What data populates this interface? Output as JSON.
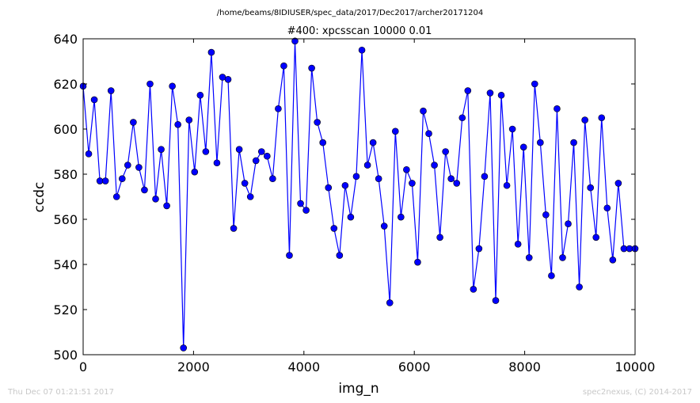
{
  "chart_data": {
    "type": "line",
    "suptitle": "/home/beams/8IDIUSER/spec_data/2017/Dec2017/archer20171204",
    "title": "#400: xpcsscan 10000 0.01",
    "xlabel": "img_n",
    "ylabel": "ccdc",
    "xlim": [
      0,
      10000
    ],
    "ylim": [
      500,
      640
    ],
    "xticks": [
      "0",
      "2000",
      "4000",
      "6000",
      "8000",
      "10000"
    ],
    "yticks": [
      "500",
      "520",
      "540",
      "560",
      "580",
      "600",
      "620",
      "640"
    ],
    "xtick_values": [
      0,
      2000,
      4000,
      6000,
      8000,
      10000
    ],
    "ytick_values": [
      500,
      520,
      540,
      560,
      580,
      600,
      620,
      640
    ],
    "grid": false,
    "line_color": "#0000ff",
    "marker_color": "#0000ff",
    "marker": "circle",
    "series": [
      {
        "x": [
          0,
          101,
          202,
          303,
          404,
          505,
          606,
          707,
          808,
          909,
          1010,
          1111,
          1212,
          1313,
          1414,
          1515,
          1616,
          1717,
          1818,
          1919,
          2020,
          2121,
          2222,
          2323,
          2424,
          2525,
          2626,
          2727,
          2828,
          2929,
          3030,
          3131,
          3232,
          3333,
          3434,
          3535,
          3636,
          3737,
          3838,
          3939,
          4040,
          4141,
          4242,
          4343,
          4444,
          4545,
          4646,
          4747,
          4848,
          4949,
          5051,
          5152,
          5253,
          5354,
          5455,
          5556,
          5657,
          5758,
          5859,
          5960,
          6061,
          6162,
          6263,
          6364,
          6465,
          6566,
          6667,
          6768,
          6869,
          6970,
          7071,
          7172,
          7273,
          7374,
          7475,
          7576,
          7677,
          7778,
          7879,
          7980,
          8081,
          8182,
          8283,
          8384,
          8485,
          8586,
          8687,
          8788,
          8889,
          8990,
          9091,
          9192,
          9293,
          9394,
          9495,
          9596,
          9697,
          9798,
          9899,
          10000
        ],
        "y": [
          619,
          589,
          613,
          577,
          577,
          617,
          570,
          578,
          584,
          603,
          583,
          573,
          620,
          569,
          591,
          566,
          619,
          602,
          503,
          604,
          581,
          615,
          590,
          634,
          585,
          623,
          622,
          556,
          591,
          576,
          570,
          586,
          590,
          588,
          578,
          609,
          628,
          544,
          639,
          567,
          564,
          627,
          603,
          594,
          574,
          556,
          544,
          575,
          561,
          579,
          635,
          584,
          594,
          578,
          557,
          523,
          599,
          561,
          582,
          576,
          541,
          608,
          598,
          584,
          552,
          590,
          578,
          576,
          605,
          617,
          529,
          547,
          579,
          616,
          524,
          615,
          575,
          600,
          549,
          592,
          543,
          620,
          594,
          562,
          535,
          609,
          543,
          558,
          594,
          530,
          604,
          574,
          552,
          605,
          565,
          542,
          576,
          547,
          547,
          547
        ]
      }
    ]
  },
  "footer": {
    "timestamp": "Thu Dec 07 01:21:51 2017",
    "credit": "spec2nexus, (C) 2014-2017"
  }
}
